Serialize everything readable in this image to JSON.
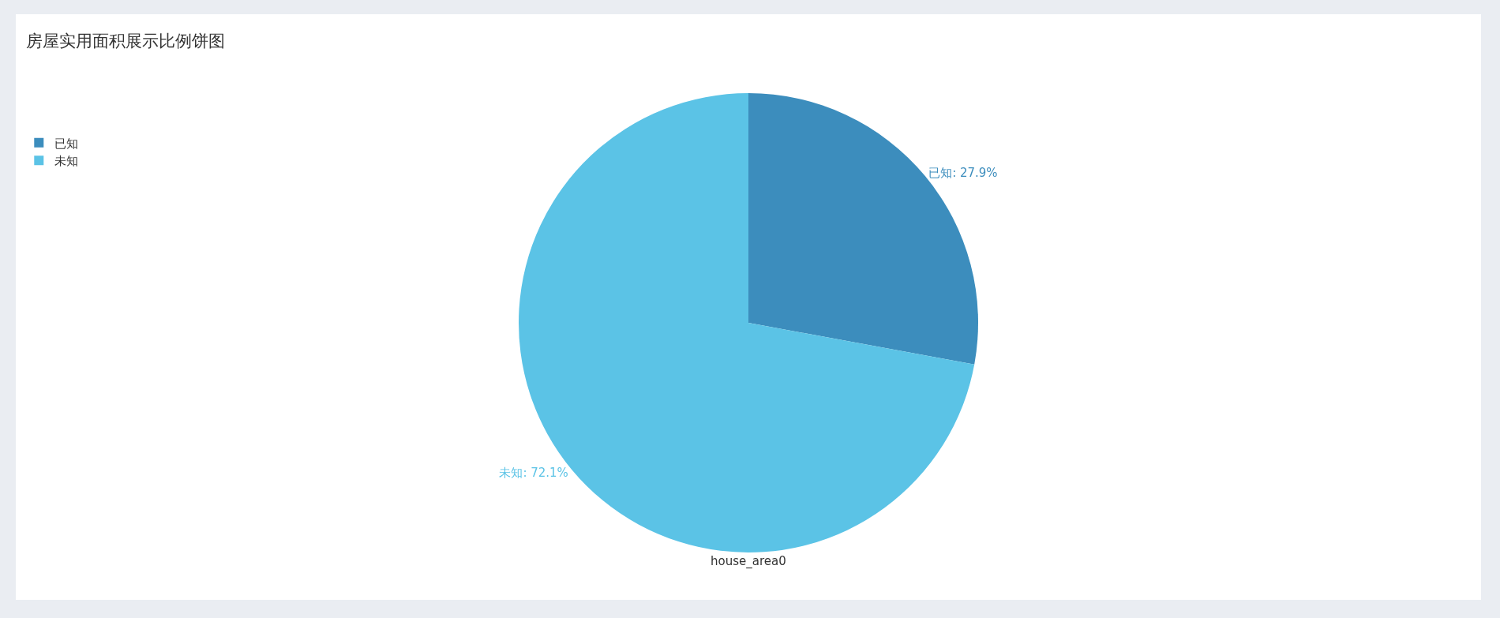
{
  "chart_data": {
    "type": "pie",
    "title": "房屋实用面积展示比例饼图",
    "categories": [
      "已知",
      "未知"
    ],
    "values": [
      27.9,
      72.1
    ],
    "colors": [
      "#3c8dbd",
      "#5bc3e6"
    ],
    "value_labels": [
      "已知: 27.9%",
      "未知: 72.1%"
    ],
    "annotations": [
      "house_area0"
    ],
    "legend": "top left"
  }
}
